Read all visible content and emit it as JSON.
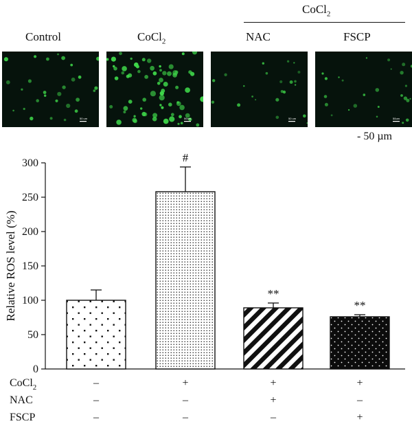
{
  "panel_a": {
    "group_header": "CoCl",
    "group_header_sub": "2",
    "columns": [
      {
        "label": "Control",
        "sub": ""
      },
      {
        "label": "CoCl",
        "sub": "2"
      },
      {
        "label": "NAC",
        "sub": ""
      },
      {
        "label": "FSCP",
        "sub": ""
      }
    ],
    "scale_bar_label": "50 µm",
    "scale_bar_dash": "-",
    "image_scale_texts": [
      "50 um",
      "50um",
      "50 um",
      "50um"
    ],
    "fluorescence_color": "#3fd84a"
  },
  "chart_data": {
    "type": "bar",
    "categories": [
      "Control",
      "CoCl2",
      "CoCl2 + NAC",
      "CoCl2 + FSCP"
    ],
    "values": [
      100,
      258,
      89,
      76
    ],
    "errors": [
      15,
      36,
      7,
      3
    ],
    "significance": [
      "",
      "#",
      "**",
      "**"
    ],
    "fill_patterns": [
      "sparse-dots",
      "dense-dots",
      "diagonal-stripes",
      "white-dots-on-black"
    ],
    "ylabel": "Relative ROS level (%)",
    "ylim": [
      0,
      300
    ],
    "yticks": [
      0,
      50,
      100,
      150,
      200,
      250,
      300
    ],
    "treatments": [
      {
        "name": "CoCl",
        "sub": "2",
        "signs": [
          "–",
          "+",
          "+",
          "+"
        ]
      },
      {
        "name": "NAC",
        "sub": "",
        "signs": [
          "–",
          "–",
          "+",
          "–"
        ]
      },
      {
        "name": "FSCP",
        "sub": "",
        "signs": [
          "–",
          "–",
          "–",
          "+"
        ]
      }
    ],
    "grid": false
  }
}
